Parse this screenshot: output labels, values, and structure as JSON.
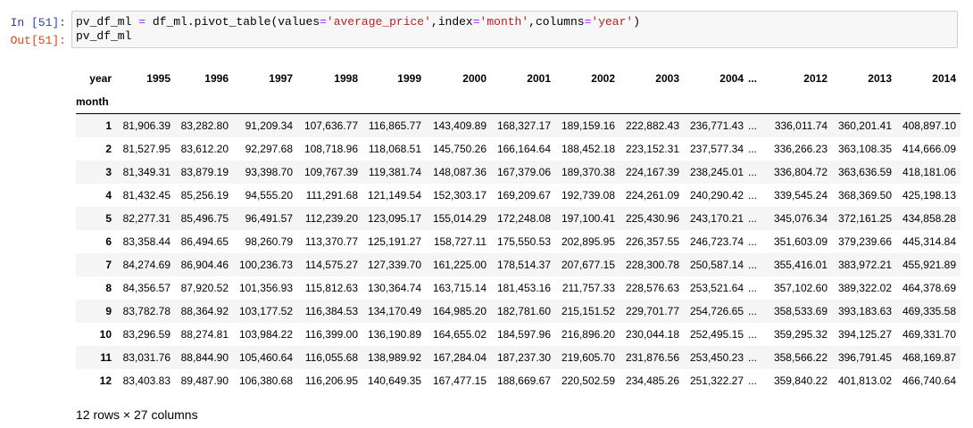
{
  "cell": {
    "input_prompt": "In [51]:",
    "code": [
      "pv_df_ml = df_ml.pivot_table(values='average_price',index='month',columns='year')",
      "pv_df_ml"
    ],
    "output_prompt": "Out[51]:"
  },
  "table": {
    "columns_name": "year",
    "index_name": "month",
    "columns": [
      "1995",
      "1996",
      "1997",
      "1998",
      "1999",
      "2000",
      "2001",
      "2002",
      "2003",
      "2004",
      "...",
      "2012",
      "2013",
      "2014"
    ],
    "rows": [
      {
        "index": "1",
        "cells": [
          "81,906.39",
          "83,282.80",
          "91,209.34",
          "107,636.77",
          "116,865.77",
          "143,409.89",
          "168,327.17",
          "189,159.16",
          "222,882.43",
          "236,771.43",
          "...",
          "336,011.74",
          "360,201.41",
          "408,897.10"
        ]
      },
      {
        "index": "2",
        "cells": [
          "81,527.95",
          "83,612.20",
          "92,297.68",
          "108,718.96",
          "118,068.51",
          "145,750.26",
          "166,164.64",
          "188,452.18",
          "223,152.31",
          "237,577.34",
          "...",
          "336,266.23",
          "363,108.35",
          "414,666.09"
        ]
      },
      {
        "index": "3",
        "cells": [
          "81,349.31",
          "83,879.19",
          "93,398.70",
          "109,767.39",
          "119,381.74",
          "148,087.36",
          "167,379.06",
          "189,370.38",
          "224,167.39",
          "238,245.01",
          "...",
          "336,804.72",
          "363,636.59",
          "418,181.06"
        ]
      },
      {
        "index": "4",
        "cells": [
          "81,432.45",
          "85,256.19",
          "94,555.20",
          "111,291.68",
          "121,149.54",
          "152,303.17",
          "169,209.67",
          "192,739.08",
          "224,261.09",
          "240,290.42",
          "...",
          "339,545.24",
          "368,369.50",
          "425,198.13"
        ]
      },
      {
        "index": "5",
        "cells": [
          "82,277.31",
          "85,496.75",
          "96,491.57",
          "112,239.20",
          "123,095.17",
          "155,014.29",
          "172,248.08",
          "197,100.41",
          "225,430.96",
          "243,170.21",
          "...",
          "345,076.34",
          "372,161.25",
          "434,858.28"
        ]
      },
      {
        "index": "6",
        "cells": [
          "83,358.44",
          "86,494.65",
          "98,260.79",
          "113,370.77",
          "125,191.27",
          "158,727.11",
          "175,550.53",
          "202,895.95",
          "226,357.55",
          "246,723.74",
          "...",
          "351,603.09",
          "379,239.66",
          "445,314.84"
        ]
      },
      {
        "index": "7",
        "cells": [
          "84,274.69",
          "86,904.46",
          "100,236.73",
          "114,575.27",
          "127,339.70",
          "161,225.00",
          "178,514.37",
          "207,677.15",
          "228,300.78",
          "250,587.14",
          "...",
          "355,416.01",
          "383,972.21",
          "455,921.89"
        ]
      },
      {
        "index": "8",
        "cells": [
          "84,356.57",
          "87,920.52",
          "101,356.93",
          "115,812.63",
          "130,364.74",
          "163,715.14",
          "181,453.16",
          "211,757.33",
          "228,576.63",
          "253,521.64",
          "...",
          "357,102.60",
          "389,322.02",
          "464,378.69"
        ]
      },
      {
        "index": "9",
        "cells": [
          "83,782.78",
          "88,364.92",
          "103,177.52",
          "116,384.53",
          "134,170.49",
          "164,985.20",
          "182,781.60",
          "215,151.52",
          "229,701.77",
          "254,726.65",
          "...",
          "358,533.69",
          "393,183.63",
          "469,335.58"
        ]
      },
      {
        "index": "10",
        "cells": [
          "83,296.59",
          "88,274.81",
          "103,984.22",
          "116,399.00",
          "136,190.89",
          "164,655.02",
          "184,597.96",
          "216,896.20",
          "230,044.18",
          "252,495.15",
          "...",
          "359,295.32",
          "394,125.27",
          "469,331.70"
        ]
      },
      {
        "index": "11",
        "cells": [
          "83,031.76",
          "88,844.90",
          "105,460.64",
          "116,055.68",
          "138,989.92",
          "167,284.04",
          "187,237.30",
          "219,605.70",
          "231,876.56",
          "253,450.23",
          "...",
          "358,566.22",
          "396,791.45",
          "468,169.87"
        ]
      },
      {
        "index": "12",
        "cells": [
          "83,403.83",
          "89,487.90",
          "106,380.68",
          "116,206.95",
          "140,649.35",
          "167,477.15",
          "188,669.67",
          "220,502.59",
          "234,485.26",
          "251,322.27",
          "...",
          "359,840.22",
          "401,813.02",
          "466,740.64"
        ]
      }
    ],
    "footer": "12 rows × 27 columns"
  }
}
